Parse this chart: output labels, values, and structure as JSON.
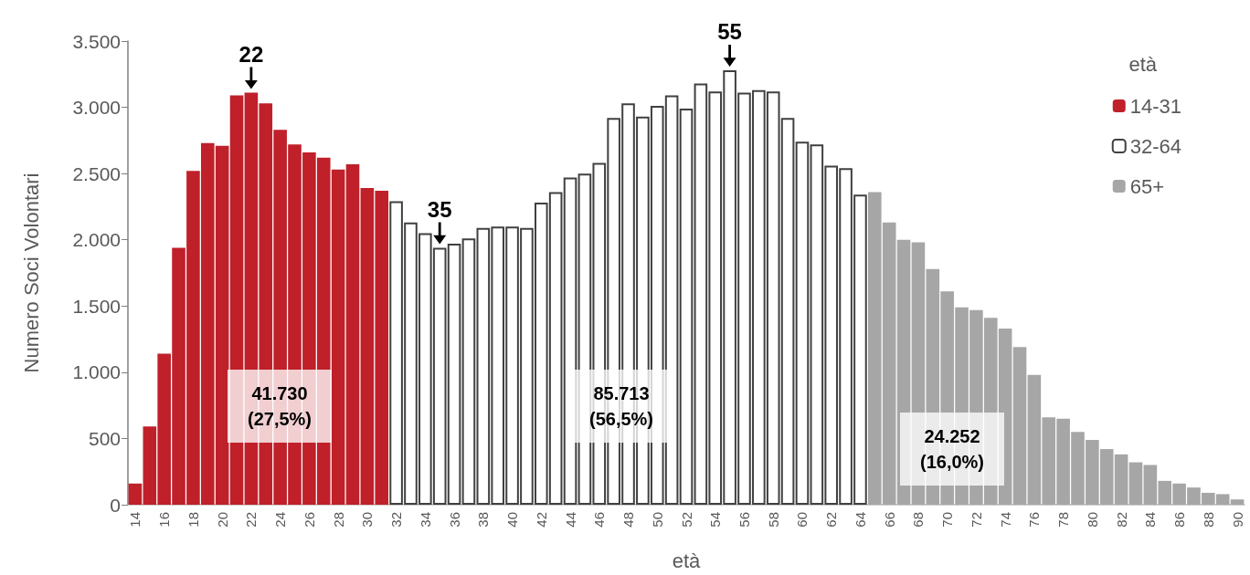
{
  "chart_data": {
    "type": "bar",
    "stacked": true,
    "xlabel": "età",
    "ylabel": "Numero Soci Volontari",
    "legend_title": "età",
    "legend": "top right",
    "grid": false,
    "categories": [
      "14",
      null,
      "16",
      null,
      "18",
      null,
      "20",
      null,
      "22",
      null,
      "24",
      null,
      "26",
      null,
      "28",
      null,
      "30",
      null,
      "32",
      null,
      "34",
      null,
      "36",
      null,
      "38",
      null,
      "40",
      null,
      "42",
      null,
      "44",
      null,
      "46",
      null,
      "48",
      null,
      "50",
      null,
      "52",
      null,
      "54",
      null,
      "56",
      null,
      "58",
      null,
      "60",
      null,
      "62",
      null,
      "64",
      null,
      "66",
      null,
      "68",
      null,
      "70",
      null,
      "72",
      null,
      "74",
      null,
      "76",
      null,
      "78",
      null,
      "80",
      null,
      "82",
      null,
      "84",
      null,
      "86",
      null,
      "88",
      null,
      "90"
    ],
    "ylim": [
      0,
      3500
    ],
    "yticks": [
      0,
      500,
      {
        "value": 1000,
        "label": "1.000"
      },
      {
        "value": 1500,
        "label": "1.500"
      },
      {
        "value": 2000,
        "label": "2.000"
      },
      {
        "value": 2500,
        "label": "2.500"
      },
      {
        "value": 3000,
        "label": "3.000"
      },
      {
        "value": 3500,
        "label": "3.500"
      }
    ],
    "series": [
      {
        "name": "14-31",
        "color": "#c0202a",
        "values": [
          160,
          590,
          1140,
          1940,
          2520,
          2730,
          2710,
          3090,
          3110,
          3030,
          2830,
          2720,
          2660,
          2620,
          2530,
          2570,
          2390,
          2370,
          null,
          null,
          null,
          null,
          null,
          null,
          null,
          null,
          null,
          null,
          null,
          null,
          null,
          null,
          null,
          null,
          null,
          null,
          null,
          null,
          null,
          null,
          null,
          null,
          null,
          null,
          null,
          null,
          null,
          null,
          null,
          null,
          null,
          null,
          null,
          null,
          null,
          null,
          null,
          null,
          null,
          null,
          null,
          null,
          null,
          null,
          null,
          null,
          null,
          null,
          null,
          null,
          null,
          null,
          null,
          null,
          null,
          null,
          null
        ]
      },
      {
        "name": "32-64",
        "color": "#ffffff",
        "values": [
          null,
          null,
          null,
          null,
          null,
          null,
          null,
          null,
          null,
          null,
          null,
          null,
          null,
          null,
          null,
          null,
          null,
          null,
          2290,
          2130,
          2050,
          1940,
          1970,
          2010,
          2090,
          2100,
          2100,
          2090,
          2280,
          2360,
          2470,
          2500,
          2580,
          2920,
          3030,
          2930,
          3010,
          3090,
          2990,
          3180,
          3120,
          3280,
          3110,
          3130,
          3120,
          2920,
          2740,
          2720,
          2560,
          2540,
          2340,
          null,
          null,
          null,
          null,
          null,
          null,
          null,
          null,
          null,
          null,
          null,
          null,
          null,
          null,
          null,
          null,
          null,
          null,
          null,
          null,
          null,
          null,
          null,
          null,
          null,
          null
        ]
      },
      {
        "name": "65+",
        "color": "#a6a6a6",
        "values": [
          null,
          null,
          null,
          null,
          null,
          null,
          null,
          null,
          null,
          null,
          null,
          null,
          null,
          null,
          null,
          null,
          null,
          null,
          null,
          null,
          null,
          null,
          null,
          null,
          null,
          null,
          null,
          null,
          null,
          null,
          null,
          null,
          null,
          null,
          null,
          null,
          null,
          null,
          null,
          null,
          null,
          null,
          null,
          null,
          null,
          null,
          null,
          null,
          null,
          null,
          null,
          2360,
          2130,
          2000,
          1980,
          1780,
          1610,
          1490,
          1470,
          1410,
          1330,
          1190,
          980,
          660,
          650,
          550,
          490,
          420,
          380,
          320,
          300,
          180,
          160,
          130,
          90,
          80,
          40
        ]
      }
    ],
    "annotations": [
      "22",
      "35",
      "55",
      "41.730\n(27,5%)",
      "85.713\n(56,5%)",
      "24.252\n(16,0%)"
    ]
  }
}
